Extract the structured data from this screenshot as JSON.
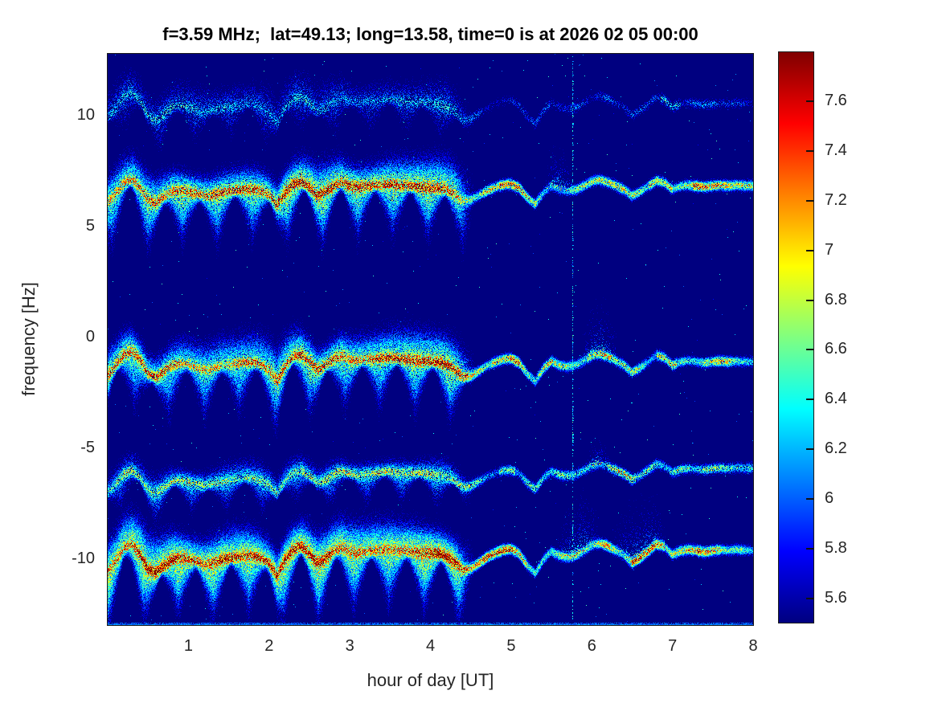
{
  "chart_data": {
    "type": "heatmap",
    "title": "f=3.59 MHz;  lat=49.13; long=13.58, time=0 is at 2026 02 05 00:00",
    "xlabel": "hour of day [UT]",
    "ylabel": "frequency [Hz]",
    "x_ticks": [
      1,
      2,
      3,
      4,
      5,
      6,
      7,
      8
    ],
    "y_ticks": [
      10,
      5,
      0,
      -5,
      -10
    ],
    "xlim": [
      0,
      8
    ],
    "ylim": [
      -12.93,
      12.83
    ],
    "grid": false,
    "colormap": "jet",
    "background_value": 5.5,
    "value_range": [
      5.5,
      7.8
    ],
    "colorbar": {
      "position": "right",
      "ticks": [
        "5.6",
        "5.8",
        "6",
        "6.2",
        "6.4",
        "6.6",
        "6.8",
        "7",
        "7.2",
        "7.4",
        "7.6"
      ],
      "tick_values": [
        5.6,
        5.8,
        6.0,
        6.2,
        6.4,
        6.6,
        6.8,
        7.0,
        7.2,
        7.4,
        7.6
      ]
    },
    "description": "Doppler spectrogram: five noisy spectral traces near +10.5, +6.8, -1, -6 and -9.8 Hz; broad turbulent clouds before ~4.4 UT narrowing to thin wavy lines afterwards; faint dotted vertical interference stripe near 5.76 UT.",
    "waveform": {
      "t0": 0,
      "dt": 0.1,
      "offsets_hz": [
        -0.55,
        -0.15,
        0.3,
        0.45,
        0.1,
        -0.45,
        -0.6,
        -0.35,
        -0.1,
        -0.05,
        -0.1,
        -0.2,
        -0.3,
        -0.25,
        -0.15,
        -0.1,
        -0.05,
        0.0,
        0.0,
        -0.1,
        -0.3,
        -0.75,
        -0.15,
        0.2,
        0.3,
        0.05,
        -0.3,
        -0.15,
        0.1,
        0.25,
        0.1,
        0.05,
        0.1,
        0.12,
        0.15,
        0.18,
        0.12,
        0.1,
        0.08,
        0.05,
        0.02,
        0.0,
        -0.1,
        -0.3,
        -0.6,
        -0.55,
        -0.35,
        -0.15,
        0.0,
        0.12,
        0.15,
        -0.02,
        -0.45,
        -0.75,
        -0.25,
        0.05,
        -0.12,
        -0.18,
        -0.12,
        0.05,
        0.25,
        0.32,
        0.22,
        0.05,
        -0.12,
        -0.4,
        -0.22,
        0.02,
        0.28,
        0.18,
        -0.12,
        0.02,
        0.06,
        0.02,
        -0.03,
        0.02,
        0.05,
        0.02,
        0.05,
        0.02,
        0.02
      ]
    },
    "transition": {
      "cloud_end_hour": 4.25,
      "line_full_hour": 4.6
    },
    "bands": [
      {
        "label": "trace +10.5 Hz",
        "center_hz": 10.55,
        "tilt_hz_per_hour": 0.0,
        "amp": 1.2,
        "sig_up": 0.6,
        "sig_dn": 0.6,
        "cloud_gain": 0.5,
        "core_gain": 0.3,
        "line_gain": 0.6,
        "sparsity": 0.45,
        "hot_segments": [
          [
            6.85,
            7.1
          ]
        ],
        "plumes": []
      },
      {
        "label": "trace +6.8 Hz",
        "center_hz": 6.78,
        "tilt_hz_per_hour": 0.02,
        "amp": 1.0,
        "sig_up": 0.7,
        "sig_dn": 0.9,
        "cloud_gain": 1.05,
        "core_gain": 0.9,
        "line_gain": 1.5,
        "sparsity": 0.05,
        "hot_segments": [
          [
            0.0,
            0.5
          ],
          [
            2.8,
            3.05
          ],
          [
            4.85,
            5.15
          ],
          [
            6.7,
            7.0
          ],
          [
            7.25,
            8.0
          ]
        ],
        "plumes": [
          [
            5.4,
            5.8,
            1.6
          ]
        ]
      },
      {
        "label": "trace -1 Hz",
        "center_hz": -1.08,
        "tilt_hz_per_hour": 0.0,
        "amp": 1.15,
        "sig_up": 0.7,
        "sig_dn": 0.9,
        "cloud_gain": 1.0,
        "core_gain": 0.85,
        "line_gain": 1.45,
        "sparsity": 0.05,
        "hot_segments": [
          [
            0.1,
            0.55
          ],
          [
            2.3,
            2.5
          ],
          [
            4.75,
            5.1
          ],
          [
            5.95,
            6.25
          ],
          [
            6.8,
            7.05
          ]
        ],
        "plumes": [
          [
            4.3,
            4.55,
            1.2
          ],
          [
            5.85,
            6.35,
            2.0
          ]
        ]
      },
      {
        "label": "trace -6 Hz",
        "center_hz": -6.15,
        "tilt_hz_per_hour": 0.07,
        "amp": 1.0,
        "sig_up": 0.45,
        "sig_dn": 0.55,
        "cloud_gain": 0.7,
        "core_gain": 0.55,
        "line_gain": 1.1,
        "sparsity": 0.15,
        "hot_segments": [
          [
            4.85,
            5.05
          ],
          [
            6.2,
            6.55
          ]
        ],
        "plumes": [
          [
            5.9,
            6.25,
            1.0
          ]
        ]
      },
      {
        "label": "trace -9.8 Hz",
        "center_hz": -9.72,
        "tilt_hz_per_hour": 0.035,
        "amp": 1.25,
        "sig_up": 0.8,
        "sig_dn": 1.0,
        "cloud_gain": 1.15,
        "core_gain": 1.0,
        "line_gain": 1.55,
        "sparsity": 0.0,
        "hot_segments": [
          [
            0.0,
            0.7
          ],
          [
            1.0,
            1.5
          ],
          [
            4.55,
            5.2
          ],
          [
            6.5,
            6.9
          ],
          [
            7.3,
            7.6
          ]
        ],
        "plumes": [
          [
            5.55,
            6.1,
            2.2
          ],
          [
            6.25,
            6.95,
            2.2
          ]
        ]
      }
    ],
    "vertical_stripe": {
      "t": 5.76,
      "value": 6.3
    },
    "bottom_edge_value": 6.1
  }
}
